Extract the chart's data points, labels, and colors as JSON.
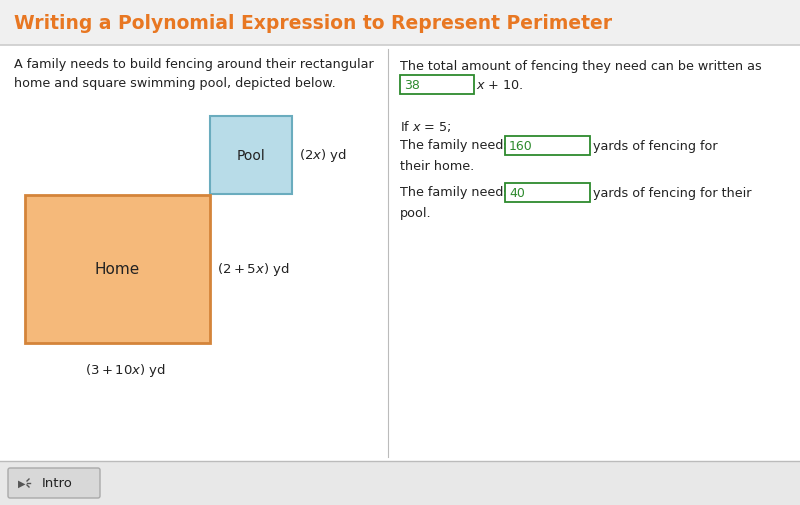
{
  "title": "Writing a Polynomial Expression to Represent Perimeter",
  "title_color": "#E87722",
  "title_bg_color": "#f0f0f0",
  "bg_color": "#ffffff",
  "left_intro": "A family needs to build fencing around their rectangular\nhome and square swimming pool, depicted below.",
  "pool_label": "Pool",
  "pool_fill": "#b8dce8",
  "pool_edge": "#6aacbe",
  "home_label": "Home",
  "home_fill": "#f5b97a",
  "home_edge": "#d4843a",
  "answer_box_color": "#2d8a2d",
  "answer_box_fill": "#ffffff",
  "answer_1": "38",
  "answer_2": "160",
  "answer_3": "40",
  "text_color": "#222222",
  "footer_bg": "#e8e8e8",
  "divider_color": "#bbbbbb",
  "title_divider": "#cccccc"
}
